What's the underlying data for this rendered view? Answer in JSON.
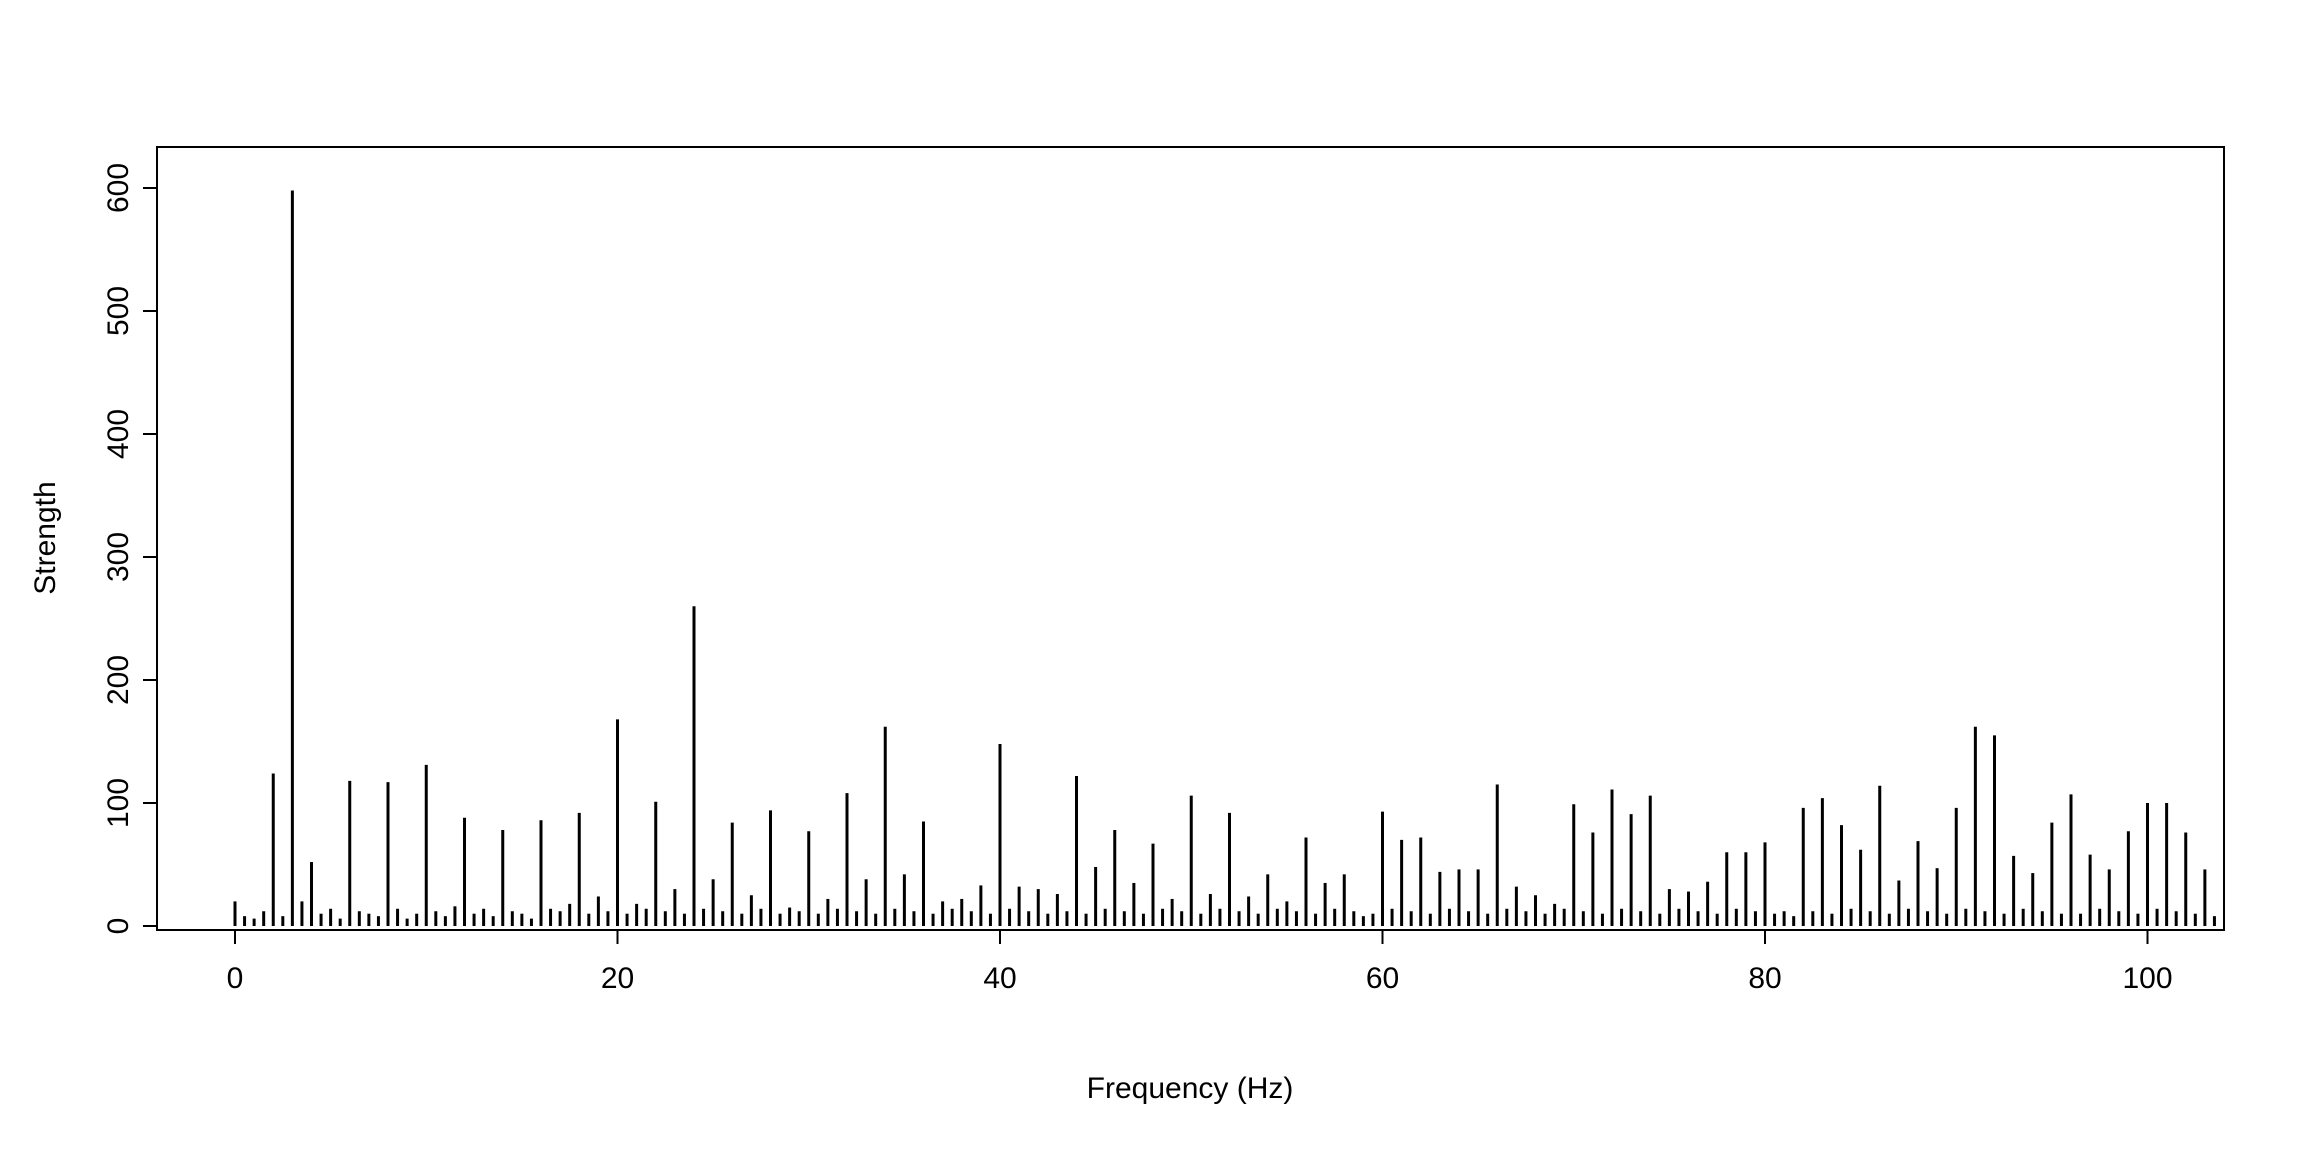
{
  "figure": {
    "background": "#ffffff",
    "foreground": "#000000"
  },
  "chart_data": {
    "type": "bar",
    "style": "stem-spectrum",
    "xlabel": "Frequency (Hz)",
    "ylabel": "Strength",
    "xlim": [
      0,
      104
    ],
    "ylim": [
      0,
      600
    ],
    "x_ticks": [
      0,
      20,
      40,
      60,
      80,
      100
    ],
    "y_ticks": [
      0,
      100,
      200,
      300,
      400,
      500,
      600
    ],
    "grid": false,
    "legend": false,
    "x_start": 0,
    "x_step": 0.5,
    "values": [
      20,
      8,
      6,
      12,
      124,
      8,
      598,
      20,
      52,
      10,
      14,
      6,
      118,
      12,
      10,
      8,
      117,
      14,
      6,
      10,
      131,
      12,
      8,
      16,
      88,
      10,
      14,
      8,
      78,
      12,
      10,
      6,
      86,
      14,
      12,
      18,
      92,
      10,
      24,
      12,
      168,
      10,
      18,
      14,
      101,
      12,
      30,
      10,
      260,
      14,
      38,
      12,
      84,
      10,
      25,
      14,
      94,
      10,
      15,
      12,
      77,
      10,
      22,
      14,
      108,
      12,
      38,
      10,
      162,
      14,
      42,
      12,
      85,
      10,
      20,
      14,
      22,
      12,
      33,
      10,
      148,
      14,
      32,
      12,
      30,
      10,
      26,
      12,
      122,
      10,
      48,
      14,
      78,
      12,
      35,
      10,
      67,
      14,
      22,
      12,
      106,
      10,
      26,
      14,
      92,
      12,
      24,
      10,
      42,
      14,
      20,
      12,
      72,
      10,
      35,
      14,
      42,
      12,
      8,
      10,
      93,
      14,
      70,
      12,
      72,
      10,
      44,
      14,
      46,
      12,
      46,
      10,
      115,
      14,
      32,
      12,
      25,
      10,
      18,
      14,
      99,
      12,
      76,
      10,
      111,
      14,
      91,
      12,
      106,
      10,
      30,
      14,
      28,
      12,
      36,
      10,
      60,
      14,
      60,
      12,
      68,
      10,
      12,
      8,
      96,
      12,
      104,
      10,
      82,
      14,
      62,
      12,
      114,
      10,
      37,
      14,
      69,
      12,
      47,
      10,
      96,
      14,
      162,
      12,
      155,
      10,
      57,
      14,
      43,
      12,
      84,
      10,
      107,
      10,
      58,
      14,
      46,
      12,
      77,
      10,
      100,
      14,
      100,
      12,
      76,
      10,
      46,
      8
    ]
  }
}
